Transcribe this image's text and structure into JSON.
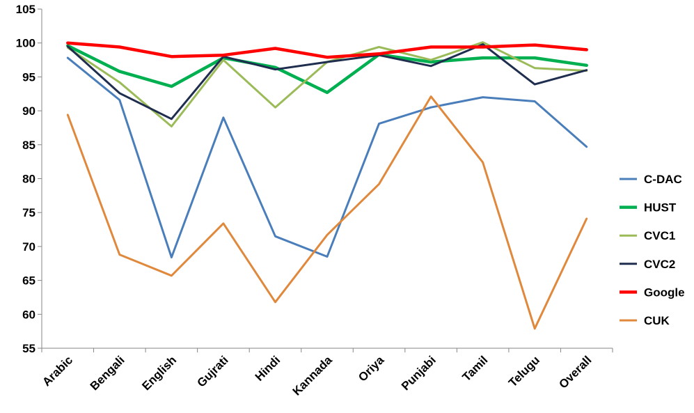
{
  "chart_data": {
    "type": "line",
    "title": "",
    "xlabel": "",
    "ylabel": "",
    "categories": [
      "Arabic",
      "Bengali",
      "English",
      "Gujrati",
      "Hindi",
      "Kannada",
      "Oriya",
      "Punjabi",
      "Tamil",
      "Telugu",
      "Overall"
    ],
    "ylim": [
      55,
      105
    ],
    "yticks": [
      55,
      60,
      65,
      70,
      75,
      80,
      85,
      90,
      95,
      100,
      105
    ],
    "grid": false,
    "legend_position": "right",
    "series": [
      {
        "name": "C-DAC",
        "color": "#4a7ebb",
        "values": [
          97.8,
          91.6,
          68.4,
          89.0,
          71.5,
          68.5,
          88.1,
          90.5,
          92.0,
          91.4,
          84.7
        ]
      },
      {
        "name": "HUST",
        "color": "#00b050",
        "values": [
          99.6,
          95.8,
          93.6,
          97.8,
          96.4,
          92.7,
          98.3,
          97.2,
          97.8,
          97.8,
          96.7
        ]
      },
      {
        "name": "CVC1",
        "color": "#9bbb59",
        "values": [
          99.3,
          94.2,
          87.7,
          97.5,
          90.5,
          97.2,
          99.4,
          97.5,
          100.1,
          96.3,
          95.9
        ]
      },
      {
        "name": "CVC2",
        "color": "#1f2d4e",
        "values": [
          99.5,
          92.6,
          88.8,
          98.0,
          96.1,
          97.2,
          98.2,
          96.6,
          99.8,
          93.9,
          96.0
        ]
      },
      {
        "name": "Google",
        "color": "#ff0000",
        "values": [
          100.0,
          99.4,
          98.0,
          98.2,
          99.2,
          97.9,
          98.4,
          99.4,
          99.4,
          99.7,
          99.0
        ]
      },
      {
        "name": "CUK",
        "color": "#e0883c",
        "values": [
          89.4,
          68.8,
          65.7,
          73.4,
          61.8,
          71.7,
          79.2,
          92.1,
          82.4,
          57.9,
          74.1
        ]
      }
    ]
  }
}
